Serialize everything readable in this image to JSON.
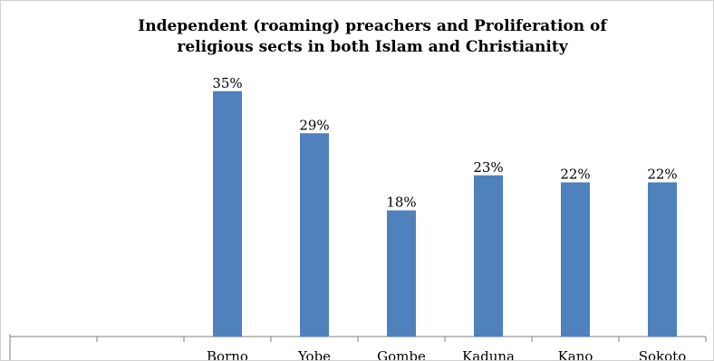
{
  "chart_data": {
    "type": "bar",
    "title_lines": [
      "Independent (roaming) preachers and Proliferation of",
      "religious sects in both Islam and Christianity"
    ],
    "categories": [
      "",
      "",
      "Borno",
      "Yobe",
      "Gombe",
      "Kaduna",
      "Kano",
      "Sokoto"
    ],
    "values": [
      null,
      null,
      35,
      29,
      18,
      23,
      22,
      22
    ],
    "data_labels": [
      "",
      "",
      "35%",
      "29%",
      "18%",
      "23%",
      "22%",
      "22%"
    ],
    "ylim": [
      0,
      40
    ],
    "grid": false,
    "legend": "none",
    "bar_color": "#4F81BD"
  }
}
